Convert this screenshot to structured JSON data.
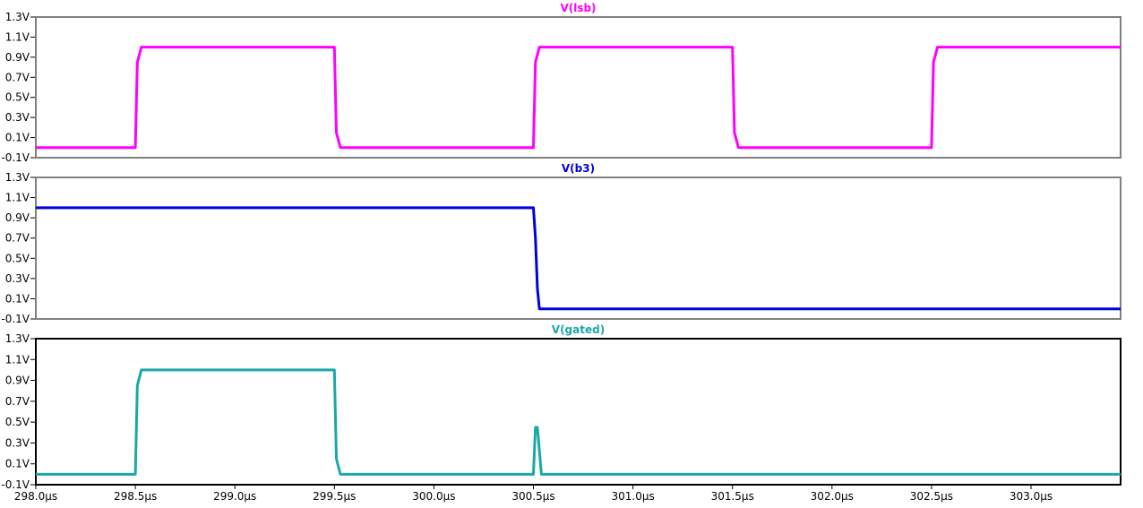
{
  "colors": {
    "background": "#ffffff",
    "frame_inactive": "#808080",
    "frame_active": "#000000",
    "axis_text": "#000000"
  },
  "chart_data": [
    {
      "type": "line",
      "title": "V(lsb)",
      "color": "#ff00ff",
      "active": false,
      "xlim": [
        298.0,
        303.45
      ],
      "ylim": [
        -0.1,
        1.3
      ],
      "y_ticks": [
        -0.1,
        0.1,
        0.3,
        0.5,
        0.7,
        0.9,
        1.1,
        1.3
      ],
      "y_tick_labels": [
        "-0.1V",
        "0.1V",
        "0.3V",
        "0.5V",
        "0.7V",
        "0.9V",
        "1.1V",
        "1.3V"
      ],
      "series": [
        {
          "x": [
            298.0,
            298.5,
            298.51,
            298.53,
            299.5,
            299.51,
            299.53,
            300.5,
            300.51,
            300.53,
            301.5,
            301.51,
            301.53,
            302.5,
            302.51,
            302.53,
            303.45
          ],
          "y": [
            0.0,
            0.0,
            0.85,
            1.0,
            1.0,
            0.15,
            0.0,
            0.0,
            0.85,
            1.0,
            1.0,
            0.15,
            0.0,
            0.0,
            0.85,
            1.0,
            1.0
          ]
        }
      ]
    },
    {
      "type": "line",
      "title": "V(b3)",
      "color": "#0000e0",
      "active": false,
      "xlim": [
        298.0,
        303.45
      ],
      "ylim": [
        -0.1,
        1.3
      ],
      "y_ticks": [
        -0.1,
        0.1,
        0.3,
        0.5,
        0.7,
        0.9,
        1.1,
        1.3
      ],
      "y_tick_labels": [
        "-0.1V",
        "0.1V",
        "0.3V",
        "0.5V",
        "0.7V",
        "0.9V",
        "1.1V",
        "1.3V"
      ],
      "series": [
        {
          "x": [
            298.0,
            300.5,
            300.51,
            300.52,
            300.53,
            303.45
          ],
          "y": [
            1.0,
            1.0,
            0.7,
            0.2,
            0.0,
            0.0
          ]
        }
      ]
    },
    {
      "type": "line",
      "title": "V(gated)",
      "color": "#1aa8a8",
      "active": true,
      "xlim": [
        298.0,
        303.45
      ],
      "ylim": [
        -0.1,
        1.3
      ],
      "y_ticks": [
        -0.1,
        0.1,
        0.3,
        0.5,
        0.7,
        0.9,
        1.1,
        1.3
      ],
      "y_tick_labels": [
        "-0.1V",
        "0.1V",
        "0.3V",
        "0.5V",
        "0.7V",
        "0.9V",
        "1.1V",
        "1.3V"
      ],
      "x_ticks": [
        298.0,
        298.5,
        299.0,
        299.5,
        300.0,
        300.5,
        301.0,
        301.5,
        302.0,
        302.5,
        303.0
      ],
      "x_tick_labels": [
        "298.0µs",
        "298.5µs",
        "299.0µs",
        "299.5µs",
        "300.0µs",
        "300.5µs",
        "301.0µs",
        "301.5µs",
        "302.0µs",
        "302.5µs",
        "303.0µs"
      ],
      "series": [
        {
          "x": [
            298.0,
            298.5,
            298.51,
            298.53,
            299.5,
            299.51,
            299.53,
            300.5,
            300.51,
            300.52,
            300.54,
            303.45
          ],
          "y": [
            0.0,
            0.0,
            0.85,
            1.0,
            1.0,
            0.15,
            0.0,
            0.0,
            0.45,
            0.45,
            0.0,
            0.0
          ]
        }
      ]
    }
  ]
}
